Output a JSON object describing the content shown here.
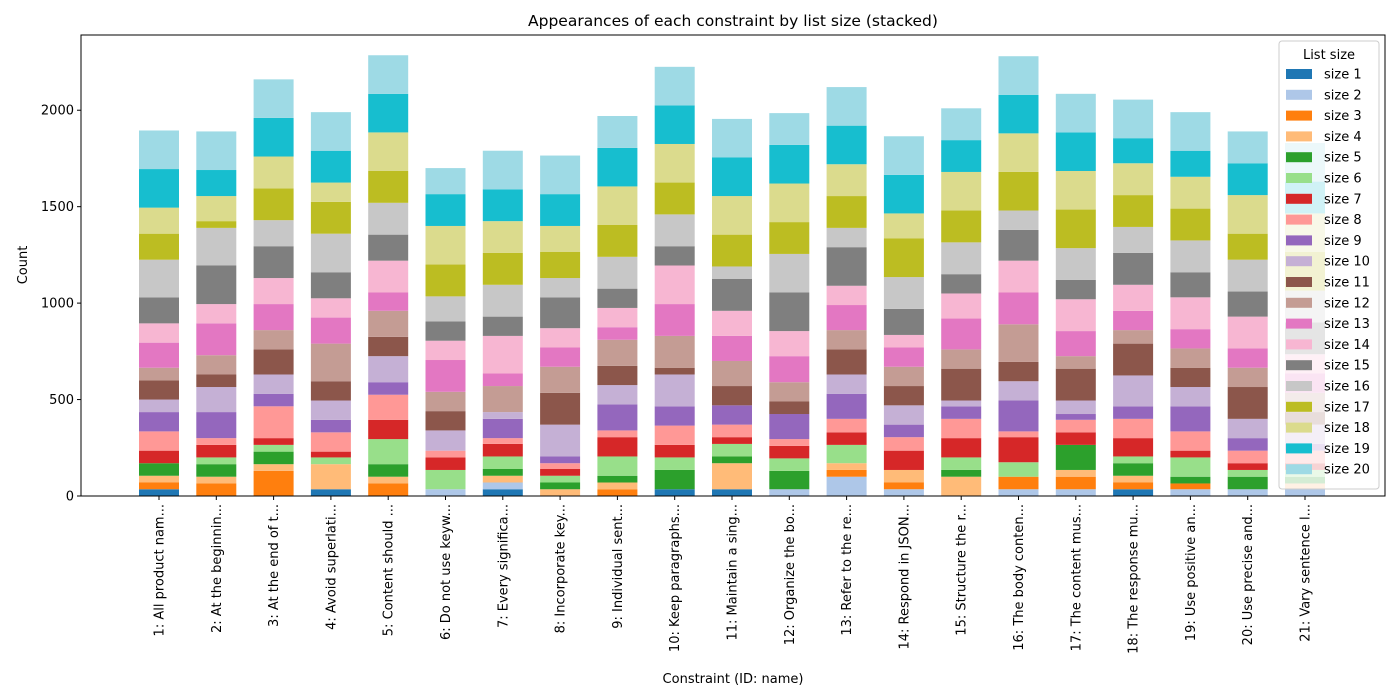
{
  "chart_data": {
    "type": "bar",
    "stacked": true,
    "title": "Appearances of each constraint by list size (stacked)",
    "xlabel": "Constraint (ID: name)",
    "ylabel": "Count",
    "ylim": [
      0,
      2390
    ],
    "yticks": [
      0,
      500,
      1000,
      1500,
      2000
    ],
    "legend_title": "List size",
    "legend_position": "top-right",
    "categories": [
      "1: All product nam...",
      "2: At the beginnin...",
      "3: At the end of t...",
      "4: Avoid superlati...",
      "5: Content should ...",
      "6: Do not use keyw...",
      "7: Every significa...",
      "8: Incorporate key...",
      "9: Individual sent...",
      "10: Keep paragraphs...",
      "11: Maintain a sing...",
      "12: Organize the bo...",
      "13: Refer to the re...",
      "14: Respond in JSON...",
      "15: Structure the r...",
      "16: The body conten...",
      "17: The content mus...",
      "18: The response mu...",
      "19: Use positive an...",
      "20: Use precise and...",
      "21: Vary sentence l..."
    ],
    "series": [
      {
        "name": "size 1",
        "color": "#1f77b4",
        "values": [
          35,
          0,
          0,
          35,
          0,
          0,
          35,
          0,
          0,
          35,
          35,
          0,
          0,
          0,
          0,
          0,
          0,
          35,
          0,
          0,
          0
        ]
      },
      {
        "name": "size 2",
        "color": "#aec7e8",
        "values": [
          0,
          0,
          0,
          0,
          0,
          35,
          35,
          0,
          0,
          0,
          0,
          35,
          100,
          35,
          0,
          35,
          35,
          0,
          35,
          35,
          35
        ]
      },
      {
        "name": "size 3",
        "color": "#ff7f0e",
        "values": [
          35,
          65,
          130,
          0,
          65,
          0,
          0,
          0,
          35,
          0,
          0,
          0,
          35,
          35,
          0,
          65,
          65,
          35,
          30,
          0,
          0
        ]
      },
      {
        "name": "size 4",
        "color": "#ffbb78",
        "values": [
          35,
          35,
          35,
          130,
          35,
          0,
          35,
          35,
          35,
          0,
          135,
          0,
          35,
          65,
          100,
          0,
          35,
          35,
          0,
          0,
          30
        ]
      },
      {
        "name": "size 5",
        "color": "#2ca02c",
        "values": [
          65,
          65,
          65,
          0,
          65,
          0,
          35,
          35,
          35,
          100,
          35,
          95,
          0,
          0,
          35,
          0,
          130,
          65,
          35,
          65,
          35
        ]
      },
      {
        "name": "size 6",
        "color": "#98df8a",
        "values": [
          0,
          35,
          35,
          35,
          130,
          100,
          65,
          35,
          100,
          65,
          65,
          65,
          95,
          0,
          65,
          75,
          0,
          35,
          100,
          35,
          35
        ]
      },
      {
        "name": "size 7",
        "color": "#d62728",
        "values": [
          65,
          65,
          35,
          30,
          100,
          65,
          65,
          35,
          100,
          65,
          35,
          65,
          65,
          100,
          100,
          130,
          65,
          95,
          35,
          35,
          35
        ]
      },
      {
        "name": "size 8",
        "color": "#ff9896",
        "values": [
          100,
          35,
          165,
          100,
          130,
          35,
          30,
          30,
          35,
          100,
          65,
          35,
          70,
          70,
          100,
          30,
          65,
          100,
          100,
          65,
          65
        ]
      },
      {
        "name": "size 9",
        "color": "#9467bd",
        "values": [
          100,
          135,
          65,
          65,
          65,
          0,
          100,
          35,
          135,
          100,
          100,
          130,
          130,
          65,
          65,
          160,
          30,
          65,
          130,
          65,
          35
        ]
      },
      {
        "name": "size 10",
        "color": "#c5b0d5",
        "values": [
          65,
          130,
          100,
          100,
          135,
          105,
          35,
          165,
          100,
          165,
          0,
          0,
          100,
          100,
          30,
          100,
          70,
          160,
          100,
          100,
          100
        ]
      },
      {
        "name": "size 11",
        "color": "#8c564b",
        "values": [
          100,
          65,
          130,
          100,
          100,
          100,
          0,
          165,
          100,
          35,
          100,
          65,
          130,
          100,
          165,
          100,
          165,
          165,
          100,
          165,
          65
        ]
      },
      {
        "name": "size 12",
        "color": "#c49c94",
        "values": [
          65,
          100,
          100,
          195,
          135,
          100,
          135,
          135,
          135,
          165,
          130,
          100,
          100,
          100,
          100,
          195,
          65,
          70,
          100,
          100,
          100
        ]
      },
      {
        "name": "size 13",
        "color": "#e377c2",
        "values": [
          130,
          165,
          135,
          135,
          95,
          165,
          65,
          100,
          65,
          165,
          130,
          135,
          130,
          100,
          160,
          165,
          130,
          100,
          100,
          100,
          100
        ]
      },
      {
        "name": "size 14",
        "color": "#f7b6d2",
        "values": [
          100,
          100,
          135,
          100,
          165,
          100,
          195,
          100,
          100,
          200,
          130,
          130,
          100,
          65,
          130,
          165,
          165,
          135,
          165,
          165,
          100
        ]
      },
      {
        "name": "size 15",
        "color": "#7f7f7f",
        "values": [
          135,
          200,
          165,
          135,
          135,
          100,
          100,
          160,
          100,
          100,
          165,
          200,
          200,
          135,
          100,
          160,
          100,
          165,
          130,
          130,
          165
        ]
      },
      {
        "name": "size 16",
        "color": "#c7c7c7",
        "values": [
          195,
          195,
          135,
          200,
          165,
          130,
          165,
          100,
          165,
          165,
          65,
          200,
          100,
          165,
          165,
          100,
          165,
          135,
          165,
          165,
          165
        ]
      },
      {
        "name": "size 17",
        "color": "#bcbd22",
        "values": [
          135,
          35,
          165,
          165,
          165,
          165,
          165,
          135,
          165,
          165,
          165,
          165,
          165,
          200,
          165,
          200,
          200,
          165,
          165,
          135,
          200
        ]
      },
      {
        "name": "size 18",
        "color": "#dbdb8d",
        "values": [
          135,
          130,
          165,
          100,
          200,
          200,
          165,
          135,
          200,
          200,
          200,
          200,
          165,
          130,
          200,
          200,
          200,
          165,
          165,
          200,
          200
        ]
      },
      {
        "name": "size 19",
        "color": "#17becf",
        "values": [
          200,
          135,
          200,
          165,
          200,
          165,
          165,
          165,
          200,
          200,
          200,
          200,
          200,
          200,
          165,
          200,
          200,
          130,
          135,
          165,
          165
        ]
      },
      {
        "name": "size 20",
        "color": "#9edae5",
        "values": [
          200,
          200,
          200,
          200,
          200,
          135,
          200,
          200,
          165,
          200,
          200,
          165,
          200,
          200,
          165,
          200,
          200,
          200,
          200,
          165,
          200
        ]
      }
    ]
  }
}
